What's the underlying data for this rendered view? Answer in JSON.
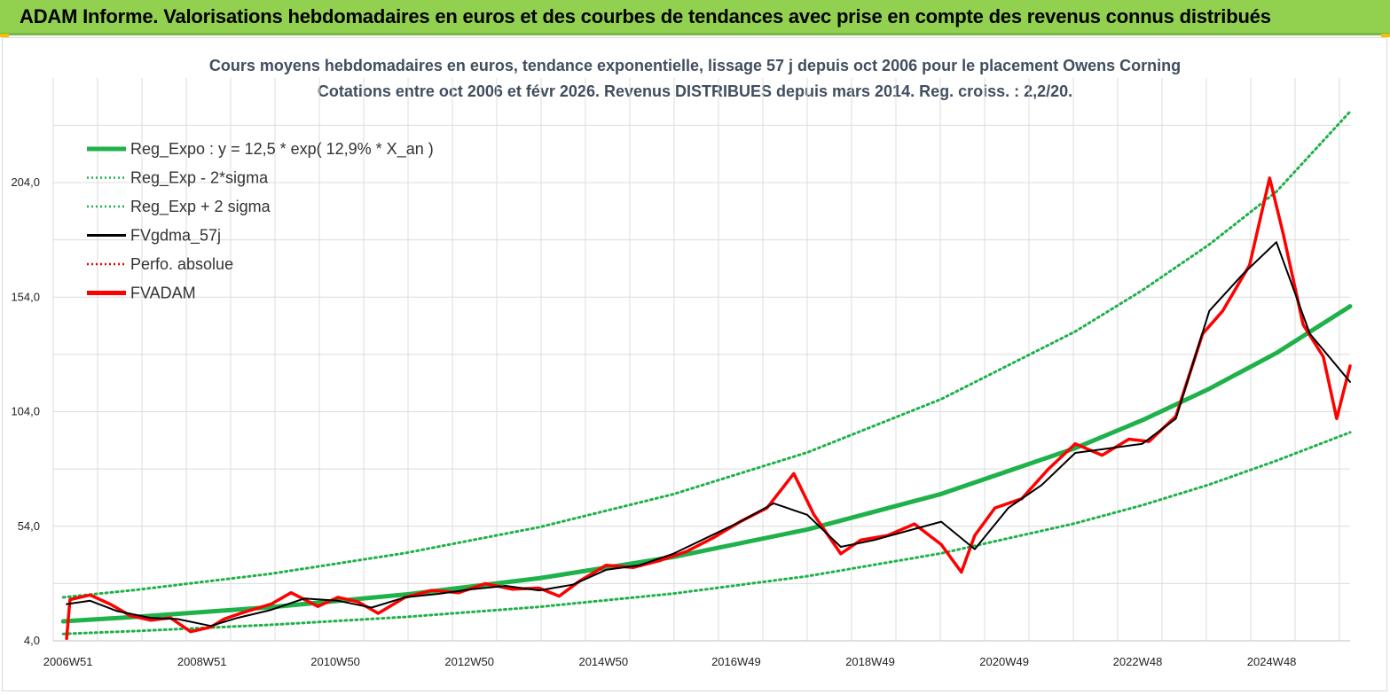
{
  "header": {
    "title": "ADAM Informe. Valorisations hebdomadaires en euros et des courbes de tendances avec prise en compte des revenus connus distribués",
    "background": "#92d050"
  },
  "chart_data": {
    "type": "line",
    "title": "Cours moyens hebdomadaires en euros, tendance exponentielle, lissage 57 j depuis oct 2006 pour le placement Owens Corning",
    "subtitle": "Cotations entre oct 2006 et févr 2026. Revenus DISTRIBUES depuis mars 2014. Reg. croiss. : 2,2/20.",
    "xlabel": "",
    "ylabel": "",
    "ylim": [
      4,
      234
    ],
    "xlim": [
      2006.75,
      2026.1
    ],
    "y_ticks": [
      "4,0",
      "54,0",
      "104,0",
      "154,0",
      "204,0"
    ],
    "y_tick_values": [
      4,
      54,
      104,
      154,
      204
    ],
    "x_ticks": [
      "2006W51",
      "2008W51",
      "2010W50",
      "2012W50",
      "2014W50",
      "2016W49",
      "2018W49",
      "2020W49",
      "2022W48",
      "2024W48"
    ],
    "x_tick_values": [
      2006.97,
      2008.97,
      2010.96,
      2012.96,
      2014.96,
      2016.94,
      2018.94,
      2020.94,
      2022.93,
      2024.93
    ],
    "grid": true,
    "legend_position": "top-left",
    "series": [
      {
        "name": "Reg_Expo : y = 12,5 * exp( 12,9% *  X_an )",
        "color": "#1fb14a",
        "style": "solid-thick",
        "x": [
          2006.9,
          2008,
          2010,
          2012,
          2014,
          2016,
          2018,
          2020,
          2022,
          2023,
          2024,
          2025,
          2026.1
        ],
        "y": [
          12.5,
          14.5,
          18.7,
          24.2,
          31.3,
          40.6,
          52.6,
          68.1,
          88.1,
          100.3,
          114.0,
          129.6,
          150.0
        ]
      },
      {
        "name": "Reg_Exp - 2*sigma",
        "color": "#1fb14a",
        "style": "dotted",
        "x": [
          2006.9,
          2008,
          2010,
          2012,
          2014,
          2016,
          2018,
          2020,
          2022,
          2023,
          2024,
          2025,
          2026.1
        ],
        "y": [
          7.0,
          8.3,
          11.0,
          14.4,
          18.8,
          24.6,
          32.2,
          42.2,
          55.3,
          63.2,
          72.2,
          82.6,
          95.0
        ]
      },
      {
        "name": "Reg_Exp + 2 sigma",
        "color": "#1fb14a",
        "style": "dotted",
        "x": [
          2006.9,
          2008,
          2010,
          2012,
          2014,
          2016,
          2018,
          2020,
          2022,
          2023,
          2024,
          2025,
          2026.1
        ],
        "y": [
          23.0,
          26.3,
          33.3,
          42.3,
          53.6,
          68.0,
          86.2,
          109.5,
          139.0,
          157.0,
          177.0,
          200.0,
          235.0
        ]
      },
      {
        "name": "FVgdma_57j",
        "color": "#000000",
        "style": "solid",
        "x": [
          2006.95,
          2007.3,
          2007.7,
          2008.2,
          2008.6,
          2009.1,
          2009.5,
          2010.0,
          2010.5,
          2011.0,
          2011.5,
          2012.0,
          2012.5,
          2013.0,
          2013.5,
          2014.0,
          2014.5,
          2015.0,
          2015.5,
          2016.0,
          2016.5,
          2017.0,
          2017.5,
          2018.0,
          2018.5,
          2019.0,
          2019.5,
          2020.0,
          2020.5,
          2021.0,
          2021.5,
          2022.0,
          2022.5,
          2023.0,
          2023.5,
          2024.0,
          2024.5,
          2025.0,
          2025.5,
          2026.1
        ],
        "y": [
          20.0,
          21.5,
          17.0,
          14.0,
          13.5,
          10.5,
          14.0,
          17.5,
          22.5,
          21.5,
          18.5,
          23.0,
          24.5,
          26.5,
          28.0,
          26.0,
          28.5,
          35.0,
          37.0,
          42.0,
          49.0,
          56.0,
          64.0,
          59.0,
          45.0,
          48.0,
          52.0,
          56.0,
          44.0,
          62.0,
          72.0,
          86.0,
          88.0,
          90.0,
          101.0,
          148.0,
          164.0,
          178.0,
          138.0,
          117.0
        ]
      },
      {
        "name": "Perfo. absolue",
        "color": "#e60000",
        "style": "dotted",
        "x": [],
        "y": []
      },
      {
        "name": "FVADAM",
        "color": "#ff0000",
        "style": "solid-thick",
        "x": [
          2006.95,
          2007.0,
          2007.3,
          2007.6,
          2007.9,
          2008.2,
          2008.5,
          2008.8,
          2009.1,
          2009.3,
          2009.6,
          2010.0,
          2010.3,
          2010.7,
          2011.0,
          2011.3,
          2011.6,
          2012.0,
          2012.4,
          2012.8,
          2013.2,
          2013.6,
          2014.0,
          2014.3,
          2014.6,
          2015.0,
          2015.4,
          2015.8,
          2016.2,
          2016.6,
          2017.0,
          2017.4,
          2017.8,
          2018.1,
          2018.5,
          2018.8,
          2019.2,
          2019.6,
          2020.0,
          2020.3,
          2020.5,
          2020.8,
          2021.2,
          2021.6,
          2022.0,
          2022.4,
          2022.8,
          2023.1,
          2023.5,
          2023.9,
          2024.2,
          2024.6,
          2024.9,
          2025.1,
          2025.4,
          2025.7,
          2025.9,
          2026.1
        ],
        "y": [
          5.0,
          22.0,
          24.0,
          20.0,
          15.0,
          13.0,
          14.0,
          8.0,
          10.0,
          13.5,
          16.5,
          20.0,
          25.0,
          19.0,
          23.0,
          21.0,
          16.0,
          23.0,
          26.0,
          25.0,
          29.0,
          26.5,
          27.0,
          23.5,
          30.0,
          37.0,
          36.0,
          39.0,
          43.0,
          49.0,
          56.0,
          62.0,
          77.0,
          59.0,
          42.0,
          48.0,
          50.0,
          55.0,
          46.0,
          34.0,
          50.0,
          62.0,
          66.0,
          79.0,
          90.0,
          85.0,
          92.0,
          91.0,
          102.0,
          138.0,
          148.0,
          168.0,
          206.0,
          182.0,
          142.0,
          128.0,
          101.0,
          124.0
        ]
      }
    ]
  }
}
